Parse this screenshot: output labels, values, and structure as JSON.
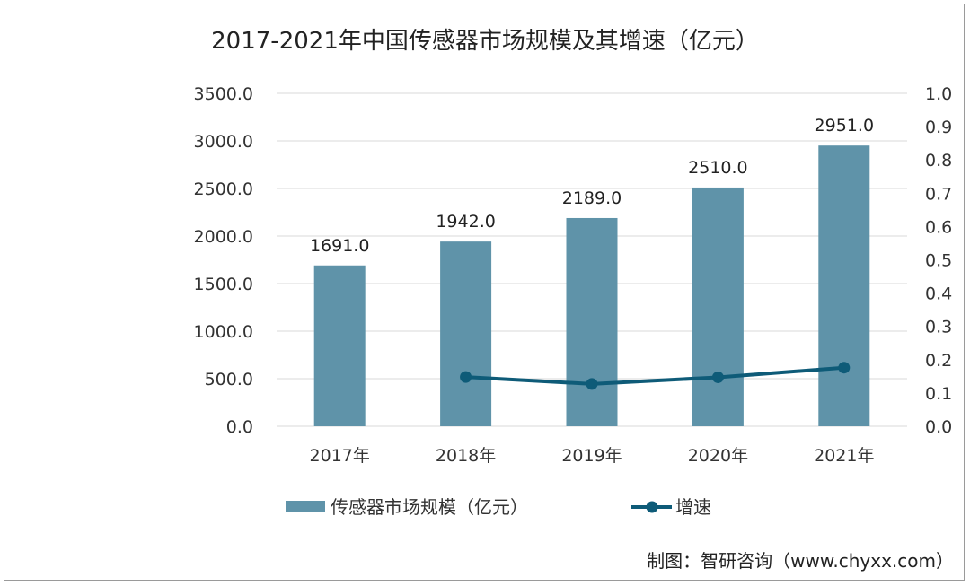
{
  "chart_data": {
    "type": "bar",
    "title": "2017-2021年中国传感器市场规模及其增速（亿元）",
    "categories": [
      "2017年",
      "2018年",
      "2019年",
      "2020年",
      "2021年"
    ],
    "series": [
      {
        "name": "传感器市场规模（亿元）",
        "type": "bar",
        "axis": "left",
        "color": "#5f93a9",
        "values": [
          1691.0,
          1942.0,
          2189.0,
          2510.0,
          2951.0
        ],
        "labels": [
          "1691.0",
          "1942.0",
          "2189.0",
          "2510.0",
          "2951.0"
        ]
      },
      {
        "name": "增速",
        "type": "line",
        "axis": "right",
        "color": "#0e5b78",
        "values": [
          null,
          0.148,
          0.127,
          0.147,
          0.176
        ]
      }
    ],
    "y_left": {
      "min": 0,
      "max": 3500,
      "ticks": [
        "0.0",
        "500.0",
        "1000.0",
        "1500.0",
        "2000.0",
        "2500.0",
        "3000.0",
        "3500.0"
      ]
    },
    "y_right": {
      "min": 0,
      "max": 1.0,
      "ticks": [
        "0.0",
        "0.1",
        "0.2",
        "0.3",
        "0.4",
        "0.5",
        "0.6",
        "0.7",
        "0.8",
        "0.9",
        "1.0"
      ]
    },
    "grid": "horizontal",
    "legend": "bottom"
  },
  "footer": {
    "credit": "制图：智研咨询（www.chyxx.com）"
  }
}
